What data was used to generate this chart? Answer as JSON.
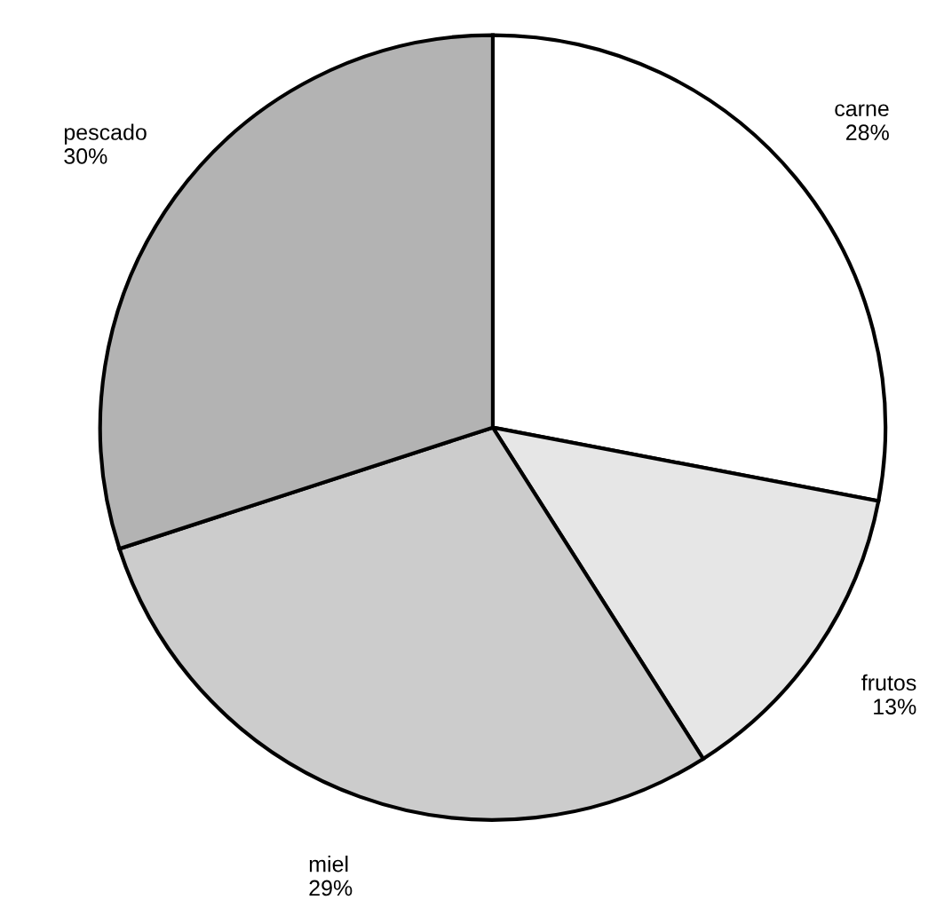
{
  "chart_data": {
    "type": "pie",
    "categories": [
      "carne",
      "frutos",
      "miel",
      "pescado"
    ],
    "values": [
      28,
      13,
      29,
      30
    ],
    "colors": [
      "#ffffff",
      "#e6e6e6",
      "#cccccc",
      "#b3b3b3"
    ],
    "value_labels": [
      "28%",
      "13%",
      "29%",
      "30%"
    ],
    "legend": false
  }
}
